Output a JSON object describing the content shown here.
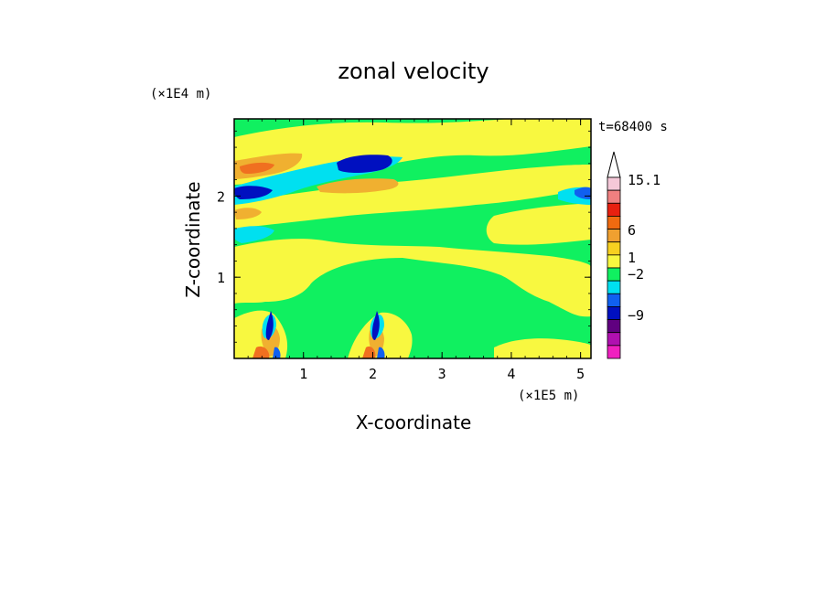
{
  "chart_data": {
    "type": "heatmap",
    "title": "zonal velocity",
    "time_label": "t=68400 s",
    "xlabel": "X-coordinate",
    "ylabel": "Z-coordinate",
    "x_units_label": "(×1E5 m)",
    "y_units_label": "(×1E4 m)",
    "xlim": [
      0,
      5.15
    ],
    "ylim": [
      0,
      2.95
    ],
    "x_ticks": [
      1,
      2,
      3,
      4,
      5
    ],
    "y_ticks": [
      1,
      2
    ],
    "colorbar": {
      "labels": [
        {
          "value": 15.1,
          "text": "15.1"
        },
        {
          "value": 6,
          "text": "6"
        },
        {
          "value": 1,
          "text": "1"
        },
        {
          "value": -2,
          "text": "−2"
        },
        {
          "value": -9,
          "text": "−9"
        }
      ],
      "bands": [
        {
          "color": "#f5c8d8"
        },
        {
          "color": "#f08080"
        },
        {
          "color": "#e82010"
        },
        {
          "color": "#f06a10"
        },
        {
          "color": "#f0a030"
        },
        {
          "color": "#f8d020"
        },
        {
          "color": "#f8f840"
        },
        {
          "color": "#10f060"
        },
        {
          "color": "#00e0f0"
        },
        {
          "color": "#1060f0"
        },
        {
          "color": "#0010c0"
        },
        {
          "color": "#600080"
        },
        {
          "color": "#b010b0"
        },
        {
          "color": "#f020c0"
        }
      ],
      "overflow_color": "#ffffff"
    },
    "field_layers": [
      {
        "level": "background",
        "color": "#10f060"
      },
      {
        "level": "positive_weak",
        "color": "#f8f840"
      },
      {
        "level": "positive_mid",
        "color": "#f0b030"
      },
      {
        "level": "positive_strong",
        "color": "#f07020"
      },
      {
        "level": "negative_weak",
        "color": "#00e0f0"
      },
      {
        "level": "negative_mid",
        "color": "#1060f0"
      },
      {
        "level": "negative_strong",
        "color": "#0010c0"
      }
    ]
  }
}
